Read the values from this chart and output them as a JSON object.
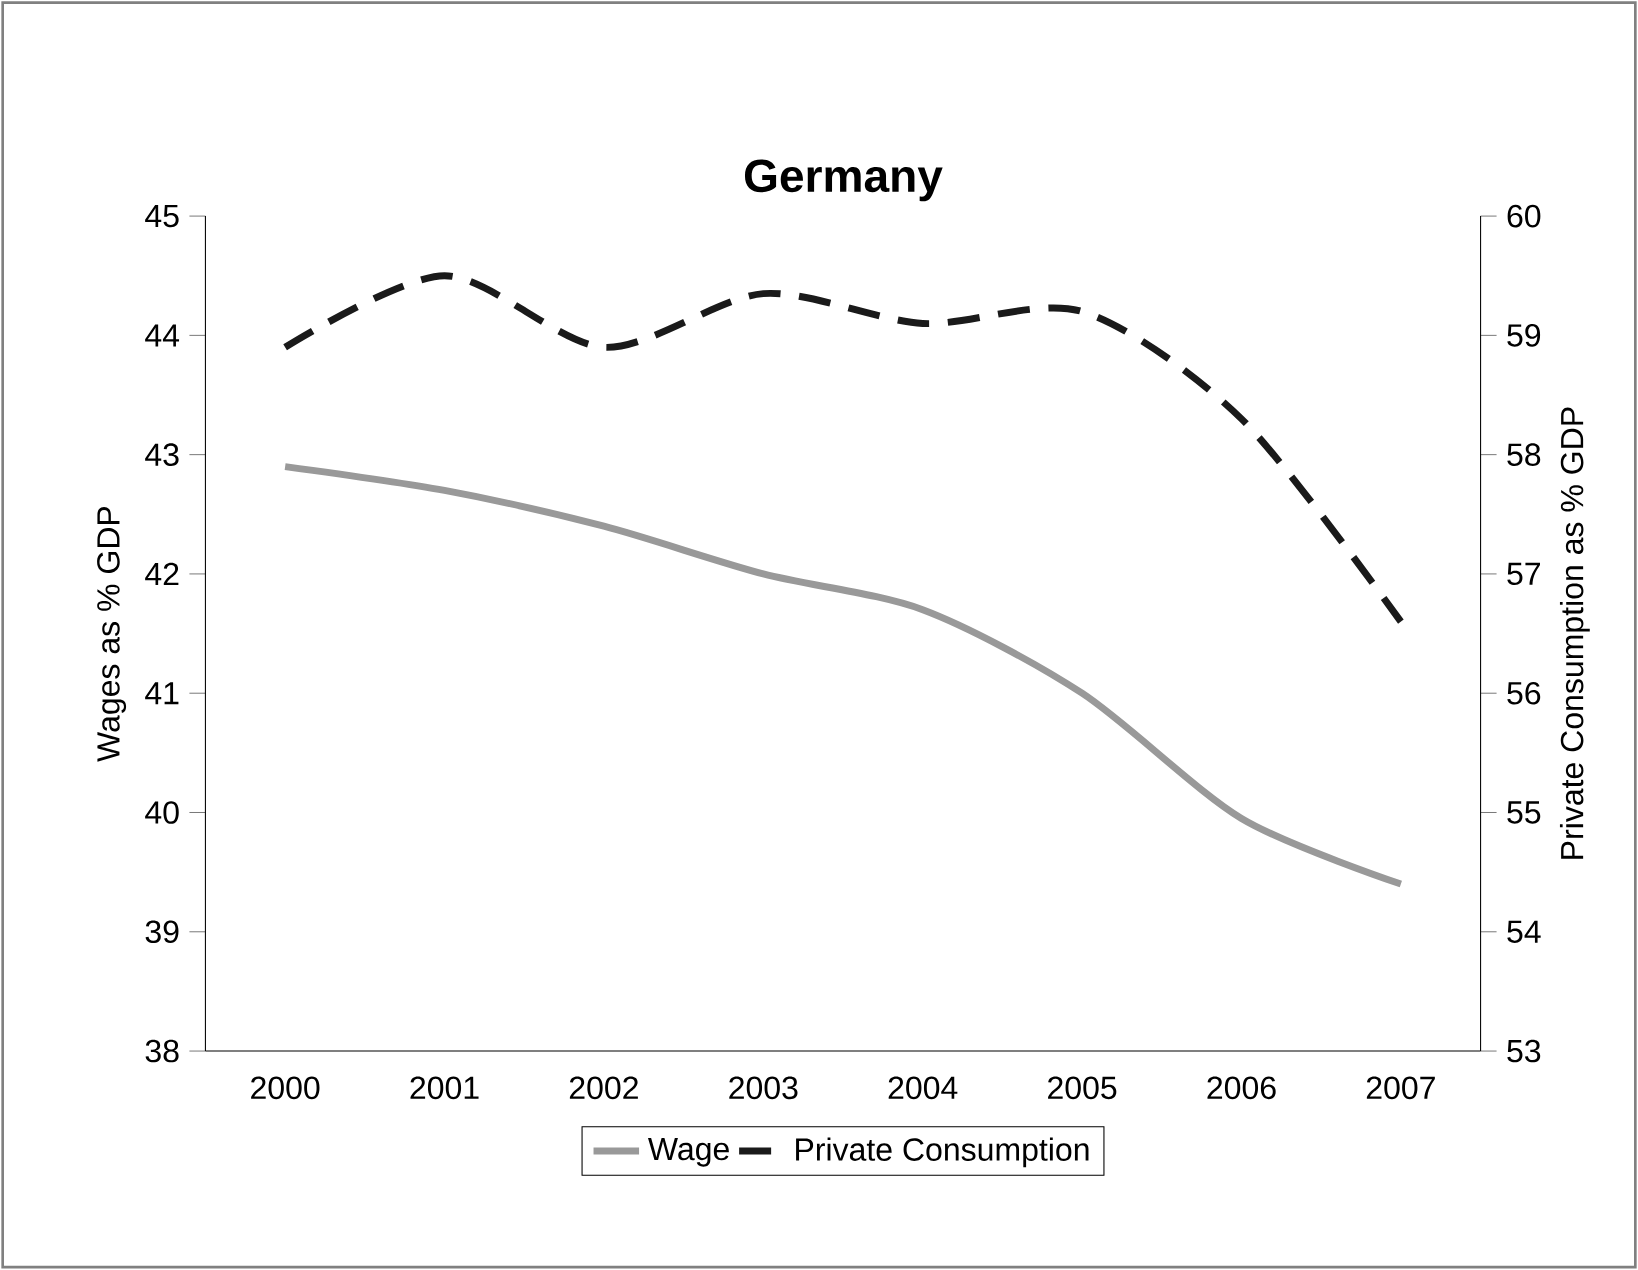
{
  "chart_data": {
    "type": "line",
    "title": "Germany",
    "ylabel": "Wages as % GDP",
    "y2label": "Private Consumption as % GDP",
    "categories": [
      "2000",
      "2001",
      "2002",
      "2003",
      "2004",
      "2005",
      "2006",
      "2007"
    ],
    "series": [
      {
        "name": "Wage",
        "color": "#999999",
        "line_style": "solid",
        "values": [
          42.9,
          42.7,
          42.4,
          42.0,
          41.7,
          41.0,
          39.95,
          39.4
        ]
      },
      {
        "name": "Private Consumption",
        "color": "#1a1a1a",
        "line_style": "dashed",
        "axis": "y2",
        "values": [
          58.9,
          59.5,
          58.9,
          59.35,
          59.1,
          59.2,
          58.3,
          56.6
        ]
      }
    ],
    "ylim": [
      38,
      45
    ],
    "yticks": [
      38,
      39,
      40,
      41,
      42,
      43,
      44,
      45
    ],
    "y2lim": [
      53,
      60
    ],
    "y2ticks": [
      53,
      54,
      55,
      56,
      57,
      58,
      59,
      60
    ],
    "grid": false,
    "legend": "bottom",
    "marker": "none"
  }
}
